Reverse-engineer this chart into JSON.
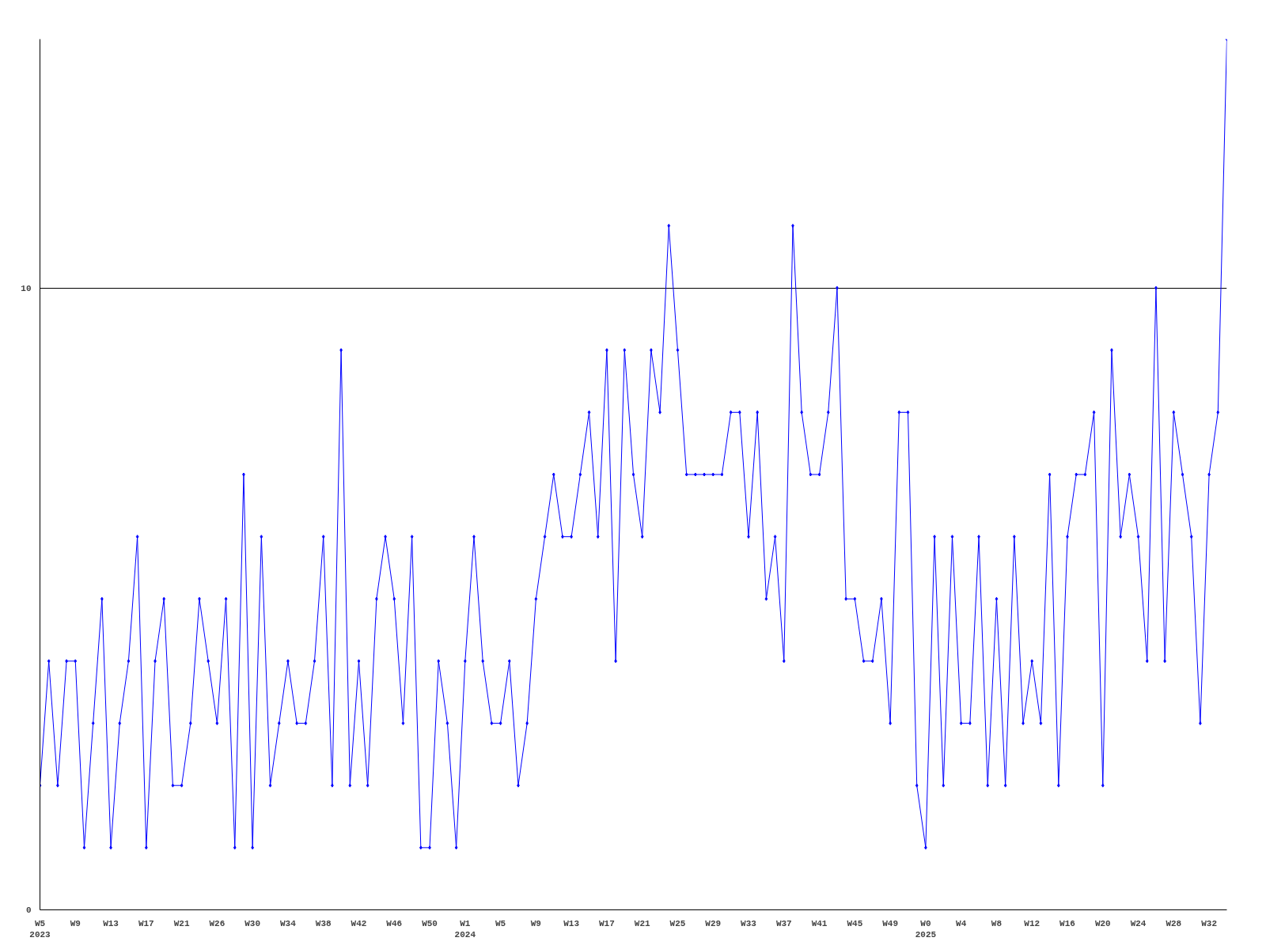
{
  "chart_data": {
    "type": "line",
    "categories": [
      "W5\n2023",
      null,
      null,
      null,
      "W9",
      null,
      null,
      null,
      "W13",
      null,
      null,
      null,
      "W17",
      null,
      null,
      null,
      "W21",
      null,
      null,
      null,
      "W26",
      null,
      null,
      null,
      "W30",
      null,
      null,
      null,
      "W34",
      null,
      null,
      null,
      "W38",
      null,
      null,
      null,
      "W42",
      null,
      null,
      null,
      "W46",
      null,
      null,
      null,
      "W50",
      null,
      null,
      null,
      "W1\n2024",
      null,
      null,
      null,
      "W5",
      null,
      null,
      null,
      "W9",
      null,
      null,
      null,
      "W13",
      null,
      null,
      null,
      "W17",
      null,
      null,
      null,
      "W21",
      null,
      null,
      null,
      "W25",
      null,
      null,
      null,
      "W29",
      null,
      null,
      null,
      "W33",
      null,
      null,
      null,
      "W37",
      null,
      null,
      null,
      "W41",
      null,
      null,
      null,
      "W45",
      null,
      null,
      null,
      "W49",
      null,
      null,
      null,
      "W0\n2025",
      null,
      null,
      null,
      "W4",
      null,
      null,
      null,
      "W8",
      null,
      null,
      null,
      "W12",
      null,
      null,
      null,
      "W16",
      null,
      null,
      null,
      "W20",
      null,
      null,
      null,
      "W24",
      null,
      null,
      null,
      "W28",
      null,
      null,
      null,
      "W32",
      null,
      null
    ],
    "series": [
      {
        "color": "#0000ff",
        "values": [
          2,
          4,
          2,
          4,
          4,
          1,
          3,
          5,
          1,
          3,
          4,
          6,
          1,
          4,
          5,
          2,
          2,
          3,
          5,
          4,
          3,
          5,
          1,
          7,
          1,
          6,
          2,
          3,
          4,
          3,
          3,
          4,
          6,
          2,
          9,
          2,
          4,
          2,
          5,
          6,
          5,
          3,
          6,
          1,
          1,
          4,
          3,
          1,
          4,
          6,
          4,
          3,
          3,
          4,
          2,
          3,
          5,
          6,
          7,
          6,
          6,
          7,
          8,
          6,
          9,
          4,
          9,
          7,
          6,
          9,
          8,
          11,
          9,
          7,
          7,
          7,
          7,
          7,
          8,
          8,
          6,
          8,
          5,
          6,
          4,
          11,
          8,
          7,
          7,
          8,
          10,
          5,
          5,
          4,
          4,
          5,
          3,
          8,
          8,
          2,
          1,
          6,
          2,
          6,
          3,
          3,
          6,
          2,
          5,
          2,
          6,
          3,
          4,
          3,
          7,
          2,
          6,
          7,
          7,
          8,
          2,
          9,
          6,
          7,
          6,
          4,
          10,
          4,
          8,
          7,
          6,
          3,
          7,
          8,
          14
        ]
      }
    ],
    "ylim": [
      0,
      14
    ],
    "yticks": [
      0,
      10
    ],
    "grid": "y",
    "marker": "diamond",
    "line_style": "solid"
  }
}
